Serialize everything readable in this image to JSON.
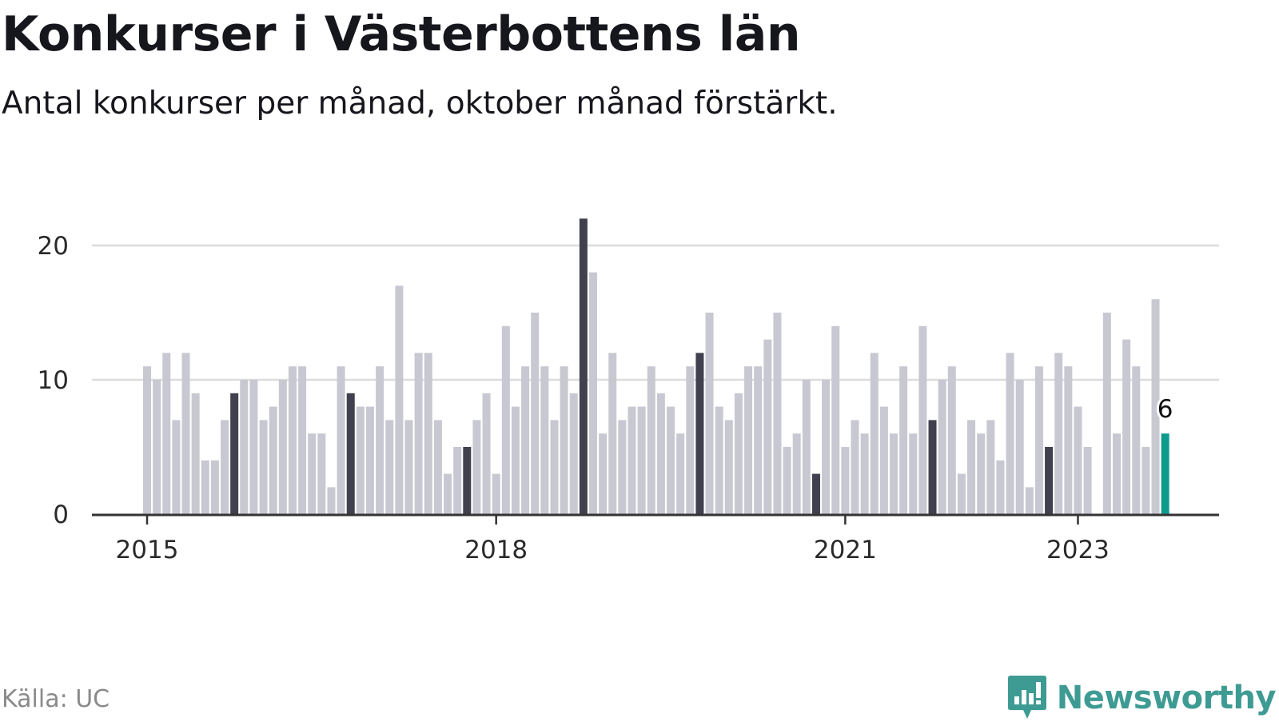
{
  "header": {
    "title": "Konkurser i Västerbottens län",
    "subtitle": "Antal konkurser per månad, oktober månad förstärkt."
  },
  "footer": {
    "source": "Källa: UC",
    "brand": "Newsworthy"
  },
  "colors": {
    "regular": "#c8c8d2",
    "october": "#40404e",
    "latest": "#0f9a8e",
    "grid": "#dcdcdc",
    "axis": "#333333",
    "brand": "#3e9b93"
  },
  "chart_data": {
    "type": "bar",
    "title": "Konkurser i Västerbottens län",
    "subtitle": "Antal konkurser per månad, oktober månad förstärkt.",
    "x_start": "2015-01",
    "x_end": "2023-10",
    "highlight": "oktober",
    "ylim": [
      0,
      22
    ],
    "y_ticks": [
      0,
      10,
      20
    ],
    "grid": true,
    "x_ticks": [
      {
        "label": "2015",
        "month": "2015-01"
      },
      {
        "label": "2018",
        "month": "2018-01"
      },
      {
        "label": "2021",
        "month": "2021-01"
      },
      {
        "label": "2023",
        "month": "2023-01"
      }
    ],
    "values": [
      11,
      10,
      12,
      7,
      12,
      9,
      4,
      4,
      7,
      9,
      10,
      10,
      7,
      8,
      10,
      11,
      11,
      6,
      6,
      2,
      11,
      9,
      8,
      8,
      11,
      7,
      17,
      7,
      12,
      12,
      7,
      3,
      5,
      5,
      7,
      9,
      3,
      14,
      8,
      11,
      15,
      11,
      7,
      11,
      9,
      22,
      18,
      6,
      12,
      7,
      8,
      8,
      11,
      9,
      8,
      6,
      11,
      12,
      15,
      8,
      7,
      9,
      11,
      11,
      13,
      15,
      5,
      6,
      10,
      3,
      10,
      14,
      5,
      7,
      6,
      12,
      8,
      6,
      11,
      6,
      14,
      7,
      10,
      11,
      3,
      7,
      6,
      7,
      4,
      12,
      10,
      2,
      11,
      5,
      12,
      11,
      8,
      5,
      0,
      15,
      6,
      13,
      11,
      5,
      16,
      6
    ],
    "annotation": {
      "month": "2023-10",
      "label": "6"
    }
  }
}
